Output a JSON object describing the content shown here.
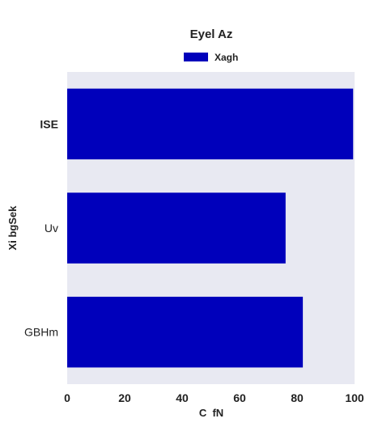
{
  "chart_data": {
    "type": "bar",
    "orientation": "horizontal",
    "title": "Eyel Az",
    "xlabel": "C  fN",
    "ylabel": "Xi bgSek",
    "categories": [
      "ISE",
      "Uv",
      "GBHm"
    ],
    "bold_categories": [
      "ISE"
    ],
    "series": [
      {
        "name": "Xagh",
        "color": "#0000bb",
        "values": [
          99.5,
          76,
          82
        ]
      }
    ],
    "xlim": [
      0,
      100
    ],
    "xticks": [
      "0",
      "20",
      "40",
      "60",
      "80",
      "100"
    ],
    "xtick_values": [
      0,
      20,
      40,
      60,
      80,
      100
    ],
    "grid": false,
    "legend_position": "top-center",
    "plot_background": "#e8e9f2"
  }
}
